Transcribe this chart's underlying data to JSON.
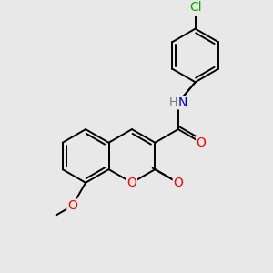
{
  "bg_color": "#e8e8e8",
  "bond_color": "#000000",
  "bond_width": 1.4,
  "atom_colors": {
    "O": "#ff0000",
    "N": "#0000cc",
    "Cl": "#00aa00",
    "C": "#000000",
    "H": "#7a7a7a"
  },
  "font_size": 10,
  "fig_size": [
    3.0,
    3.0
  ],
  "dpi": 100
}
